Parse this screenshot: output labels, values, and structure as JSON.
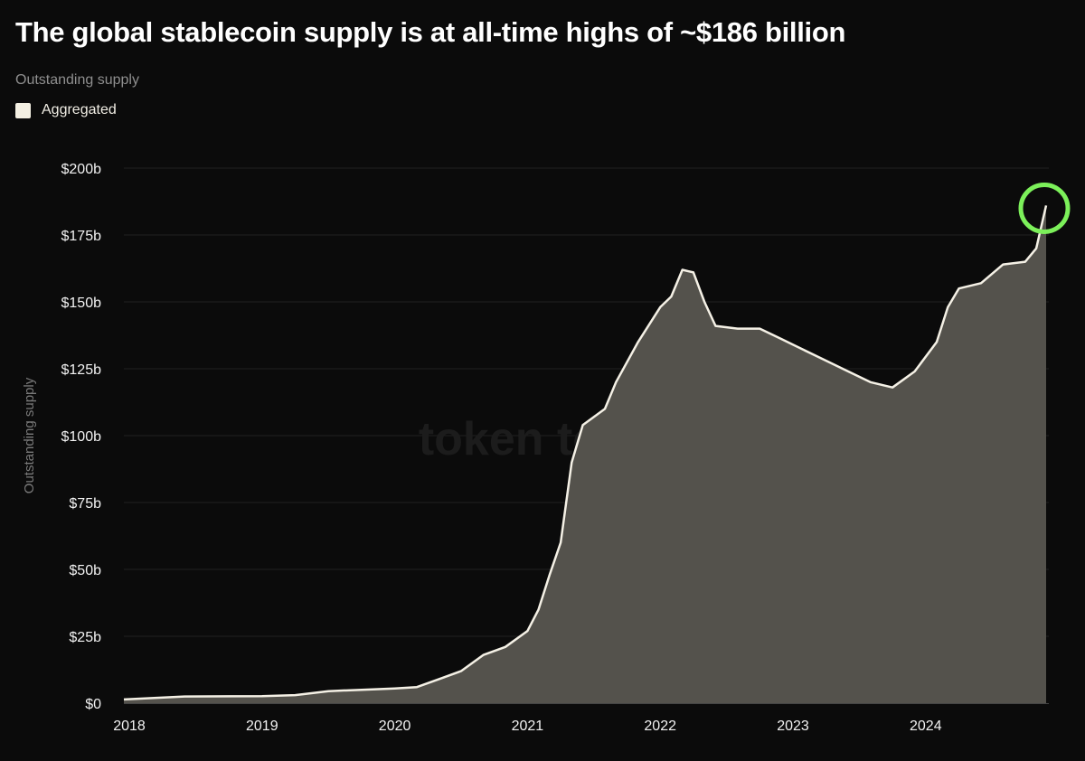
{
  "title": "The global stablecoin supply is at all-time highs of ~$186 billion",
  "subtitle": "Outstanding supply",
  "watermark": "token terminal_",
  "colors": {
    "background": "#0b0b0b",
    "line": "#f5f1e6",
    "fill": "#54524c",
    "highlight": "#7cf05a",
    "grid": "#222222"
  },
  "chart_data": {
    "type": "area",
    "ylabel": "Outstanding supply",
    "xlabel": "",
    "ylim": [
      0,
      200
    ],
    "yticks": [
      {
        "v": 0,
        "label": "$0"
      },
      {
        "v": 25,
        "label": "$25b"
      },
      {
        "v": 50,
        "label": "$50b"
      },
      {
        "v": 75,
        "label": "$75b"
      },
      {
        "v": 100,
        "label": "$100b"
      },
      {
        "v": 125,
        "label": "$125b"
      },
      {
        "v": 150,
        "label": "$150b"
      },
      {
        "v": 175,
        "label": "$175b"
      },
      {
        "v": 200,
        "label": "$200b"
      }
    ],
    "xticks": [
      "2018",
      "2019",
      "2020",
      "2021",
      "2022",
      "2023",
      "2024"
    ],
    "grid": true,
    "legend": {
      "placement": "top-left",
      "entries": [
        "Aggregated"
      ]
    },
    "annotation": {
      "type": "circle",
      "date": "2024-12",
      "value": 186,
      "meaning": "all-time high"
    },
    "series": [
      {
        "name": "Aggregated",
        "x": [
          "2018-01",
          "2018-06",
          "2019-01",
          "2019-04",
          "2019-07",
          "2019-10",
          "2020-01",
          "2020-03",
          "2020-05",
          "2020-07",
          "2020-09",
          "2020-11",
          "2021-01",
          "2021-02",
          "2021-03",
          "2021-04",
          "2021-05",
          "2021-06",
          "2021-08",
          "2021-09",
          "2021-11",
          "2022-01",
          "2022-02",
          "2022-03",
          "2022-04",
          "2022-05",
          "2022-06",
          "2022-08",
          "2022-10",
          "2022-12",
          "2023-02",
          "2023-04",
          "2023-06",
          "2023-08",
          "2023-10",
          "2023-12",
          "2024-02",
          "2024-03",
          "2024-04",
          "2024-06",
          "2024-08",
          "2024-10",
          "2024-11",
          "2024-12"
        ],
        "values": [
          1.4,
          2.5,
          2.6,
          3,
          4.5,
          5,
          5.5,
          6,
          9,
          12,
          18,
          21,
          27,
          35,
          48,
          60,
          90,
          104,
          110,
          120,
          135,
          148,
          152,
          162,
          161,
          150,
          141,
          140,
          140,
          136,
          132,
          128,
          124,
          120,
          118,
          124,
          135,
          148,
          155,
          157,
          164,
          165,
          170,
          186
        ]
      }
    ]
  }
}
